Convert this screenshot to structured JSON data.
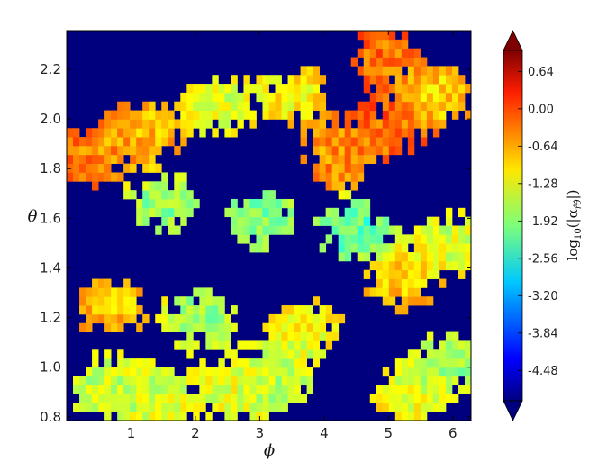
{
  "chart_data": {
    "type": "heatmap",
    "title": "",
    "xlabel": "ϕ",
    "ylabel": "θ",
    "xlim": [
      0.0,
      6.283
    ],
    "ylim": [
      0.785,
      2.356
    ],
    "x_ticks": [
      1,
      2,
      3,
      4,
      5,
      6
    ],
    "x_tick_labels": [
      "1",
      "2",
      "3",
      "4",
      "5",
      "6"
    ],
    "y_ticks": [
      0.8,
      1.0,
      1.2,
      1.4,
      1.6,
      1.8,
      2.0,
      2.2
    ],
    "y_tick_labels": [
      "0.8",
      "1.0",
      "1.2",
      "1.4",
      "1.6",
      "1.8",
      "2.0",
      "2.2"
    ],
    "colormap": "jet",
    "colorbar": {
      "label": "log10(|α_r̂θ̂|)",
      "label_main": "log",
      "label_sub": "10",
      "label_rest": "(|α",
      "label_subscript": "r̂θ̂",
      "label_end": "|)",
      "range": [
        -5.0,
        1.0
      ],
      "extend": "both",
      "ticks": [
        0.64,
        0.0,
        -0.64,
        -1.28,
        -1.92,
        -2.56,
        -3.2,
        -3.84,
        -4.48
      ],
      "tick_labels": [
        "0.64",
        "0.00",
        "-0.64",
        "-1.28",
        "-1.92",
        "-2.56",
        "-3.20",
        "-3.84",
        "-4.48"
      ]
    },
    "background_value": -5.0,
    "features": [
      {
        "phi": 0.55,
        "theta": 0.92,
        "value": -1.6
      },
      {
        "phi": 1.4,
        "theta": 0.88,
        "value": -1.5
      },
      {
        "phi": 2.6,
        "theta": 0.9,
        "value": -1.4
      },
      {
        "phi": 3.3,
        "theta": 0.95,
        "value": -1.7
      },
      {
        "phi": 5.3,
        "theta": 0.88,
        "value": -1.3
      },
      {
        "phi": 5.9,
        "theta": 1.0,
        "value": -1.8
      },
      {
        "phi": 0.3,
        "theta": 1.85,
        "value": -0.5
      },
      {
        "phi": 1.2,
        "theta": 1.95,
        "value": -0.8
      },
      {
        "phi": 2.3,
        "theta": 2.05,
        "value": -1.5
      },
      {
        "phi": 3.5,
        "theta": 2.1,
        "value": -1.2
      },
      {
        "phi": 4.9,
        "theta": 2.25,
        "value": -0.4
      },
      {
        "phi": 5.0,
        "theta": 1.95,
        "value": -0.3
      },
      {
        "phi": 4.2,
        "theta": 1.85,
        "value": -0.6
      },
      {
        "phi": 5.8,
        "theta": 2.1,
        "value": -1.0
      },
      {
        "phi": 1.5,
        "theta": 1.65,
        "value": -1.9
      },
      {
        "phi": 3.0,
        "theta": 1.6,
        "value": -2.0
      },
      {
        "phi": 4.5,
        "theta": 1.55,
        "value": -2.2
      },
      {
        "phi": 0.7,
        "theta": 1.25,
        "value": -0.9
      },
      {
        "phi": 2.1,
        "theta": 1.2,
        "value": -1.8
      },
      {
        "phi": 3.7,
        "theta": 1.15,
        "value": -1.3
      },
      {
        "phi": 5.2,
        "theta": 1.35,
        "value": -0.9
      },
      {
        "phi": 6.0,
        "theta": 1.5,
        "value": -1.5
      }
    ]
  }
}
